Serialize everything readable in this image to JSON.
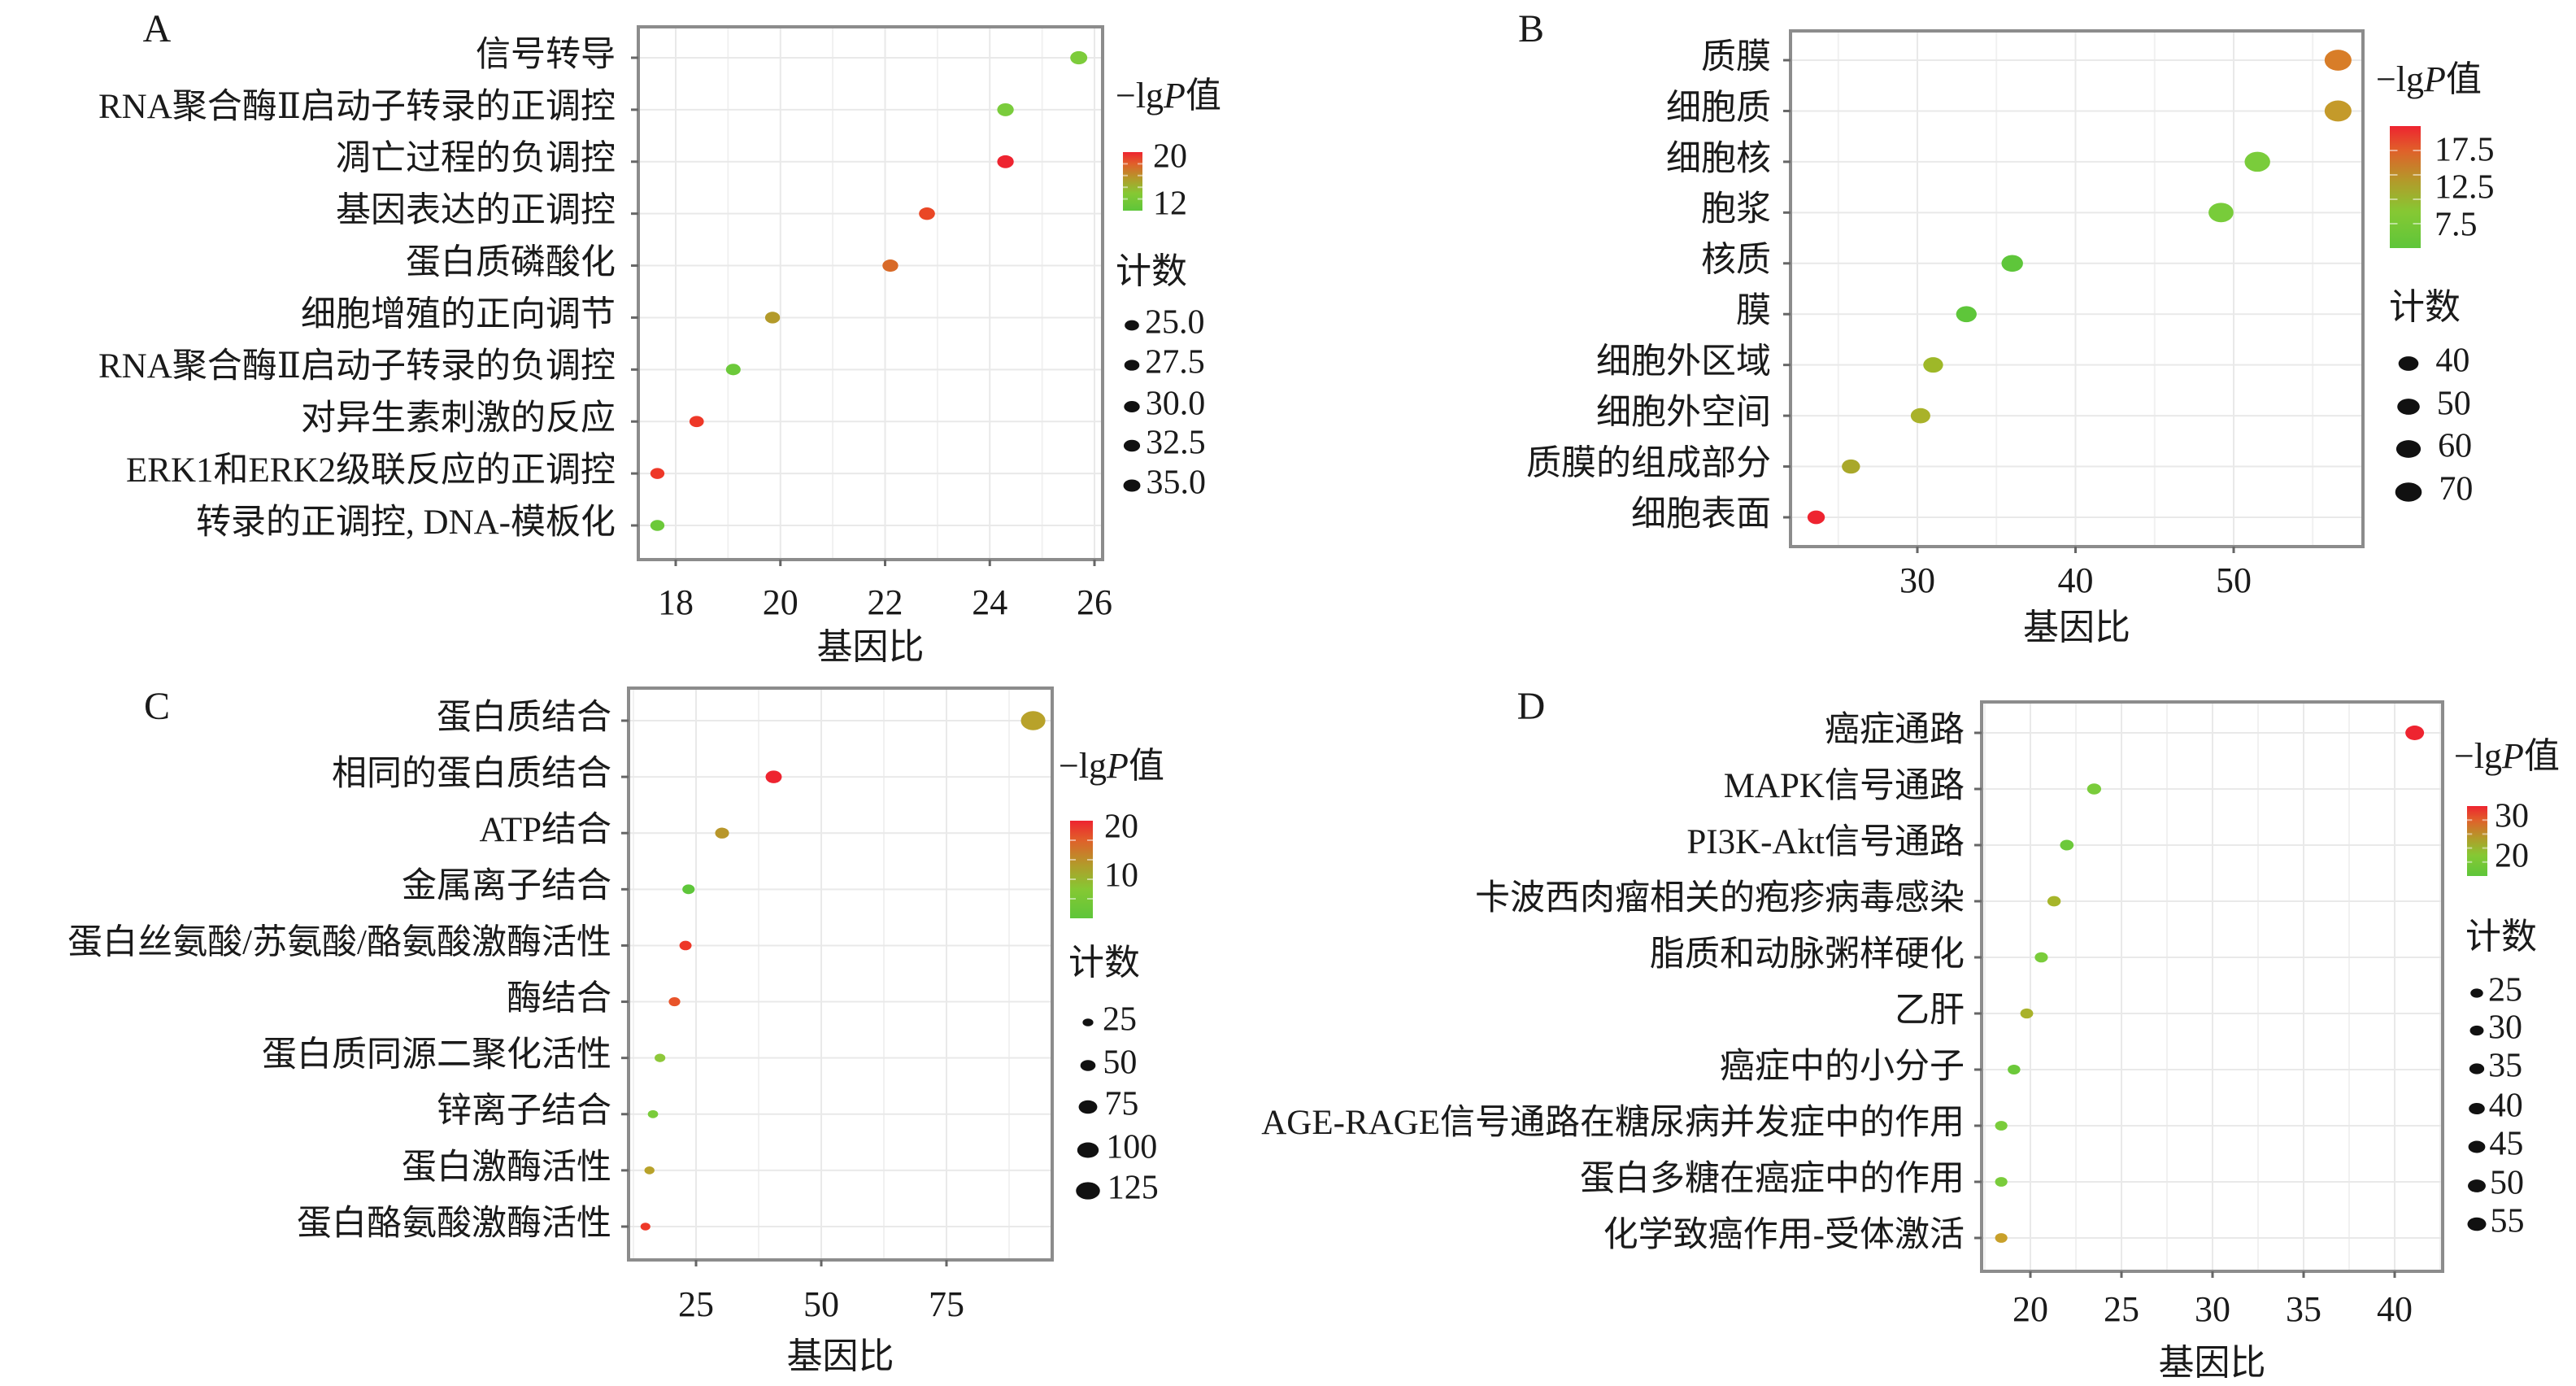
{
  "chart_data": [
    {
      "type": "scatter",
      "panel": "A",
      "xlabel": "基因比",
      "ylabel": "",
      "xlim": [
        17.3,
        26.2
      ],
      "xticks": [
        "18",
        "20",
        "22",
        "24",
        "26"
      ],
      "xtick_values": [
        18,
        20,
        22,
        24,
        26
      ],
      "minor_grid": [
        19,
        21,
        23,
        25
      ],
      "grid": true,
      "legend_position": "right",
      "color_legend": {
        "title_prefix": "−lg",
        "title_italic": "P",
        "title_suffix": "值",
        "labels": [
          "20",
          "12"
        ],
        "colors": [
          "#ee2430",
          "#b39a2a",
          "#5ec63a"
        ]
      },
      "size_legend": {
        "title": "计数",
        "labels": [
          "25.0",
          "27.5",
          "30.0",
          "32.5",
          "35.0"
        ],
        "values": [
          25,
          27.5,
          30,
          32.5,
          35
        ]
      },
      "categories": [
        "信号转导",
        "RNA聚合酶Ⅱ启动子转录的正调控",
        "凋亡过程的负调控",
        "基因表达的正调控",
        "蛋白质磷酸化",
        "细胞增殖的正向调节",
        "RNA聚合酶Ⅱ启动子转录的负调控",
        "对异生素刺激的反应",
        "ERK1和ERK2级联反应的正调控",
        "转录的正调控, DNA-模板化"
      ],
      "gene_ratio": [
        25.7,
        24.3,
        24.3,
        22.8,
        22.1,
        19.85,
        19.1,
        18.4,
        17.65,
        17.65
      ],
      "count": [
        35,
        33,
        33,
        31,
        30,
        27,
        26,
        25,
        24,
        24
      ],
      "neg_log_p": [
        11,
        12,
        21,
        19,
        17.5,
        15,
        12,
        20,
        20,
        11
      ],
      "point_colors": [
        "#7dcc3b",
        "#7acc3c",
        "#ee2430",
        "#ea4726",
        "#d86a28",
        "#b39a2a",
        "#6cc93a",
        "#ee3828",
        "#ee3828",
        "#6cc93a"
      ]
    },
    {
      "type": "scatter",
      "panel": "B",
      "xlabel": "基因比",
      "ylabel": "",
      "xlim": [
        22.2,
        58.5
      ],
      "xticks": [
        "30",
        "40",
        "50"
      ],
      "xtick_values": [
        30,
        40,
        50
      ],
      "minor_grid": [
        25,
        35,
        45,
        55
      ],
      "grid": true,
      "legend_position": "right",
      "color_legend": {
        "title_prefix": "−lg",
        "title_italic": "P",
        "title_suffix": "值",
        "labels": [
          "17.5",
          "12.5",
          "7.5"
        ],
        "colors": [
          "#ee2430",
          "#b39a2a",
          "#5ec63a"
        ]
      },
      "size_legend": {
        "title": "计数",
        "labels": [
          "40",
          "50",
          "60",
          "70"
        ],
        "values": [
          40,
          50,
          60,
          70
        ]
      },
      "categories": [
        "质膜",
        "细胞质",
        "细胞核",
        "胞浆",
        "核质",
        "膜",
        "细胞外区域",
        "细胞外空间",
        "质膜的组成部分",
        "细胞表面"
      ],
      "gene_ratio": [
        56.6,
        56.6,
        51.5,
        49.2,
        36.0,
        33.1,
        31.0,
        30.2,
        25.8,
        23.6
      ],
      "count": [
        72,
        72,
        65,
        62,
        46,
        42,
        39,
        38,
        33,
        30
      ],
      "neg_log_p": [
        14.5,
        13,
        6.5,
        7,
        5.5,
        5.5,
        9,
        10.5,
        11,
        20
      ],
      "point_colors": [
        "#d87d28",
        "#c49a2a",
        "#7acc3b",
        "#78cc3a",
        "#5ec63a",
        "#5ec63a",
        "#9eb828",
        "#a9b22a",
        "#a9a82a",
        "#ee2430"
      ]
    },
    {
      "type": "scatter",
      "panel": "C",
      "xlabel": "基因比",
      "ylabel": "",
      "xlim": [
        11.5,
        96.5
      ],
      "xticks": [
        "25",
        "50",
        "75"
      ],
      "xtick_values": [
        25,
        50,
        75
      ],
      "minor_grid": [
        12.5,
        37.5,
        62.5,
        87.5
      ],
      "grid": true,
      "legend_position": "right",
      "color_legend": {
        "title_prefix": "−lg",
        "title_italic": "P",
        "title_suffix": "值",
        "labels": [
          "20",
          "10"
        ],
        "colors": [
          "#ee2430",
          "#b39a2a",
          "#5ec63a"
        ]
      },
      "size_legend": {
        "title": "计数",
        "labels": [
          "25",
          "50",
          "75",
          "100",
          "125"
        ],
        "values": [
          25,
          50,
          75,
          100,
          125
        ]
      },
      "categories": [
        "蛋白质结合",
        "相同的蛋白质结合",
        "ATP结合",
        "金属离子结合",
        "蛋白丝氨酸/苏氨酸/酪氨酸激酶活性",
        "酶结合",
        "蛋白质同源二聚化活性",
        "锌离子结合",
        "蛋白激酶活性",
        "蛋白酪氨酸激酶活性"
      ],
      "gene_ratio": [
        92.3,
        40.5,
        30.2,
        23.5,
        22.9,
        20.7,
        17.8,
        16.4,
        15.7,
        14.9
      ],
      "count": [
        130,
        57,
        42,
        33,
        32,
        29,
        25,
        23,
        22,
        21
      ],
      "neg_log_p": [
        10,
        21,
        11,
        4,
        19,
        17,
        7,
        5,
        10,
        19
      ],
      "point_colors": [
        "#b8a22a",
        "#ee2430",
        "#b8962a",
        "#5ec63a",
        "#ee3828",
        "#e8542a",
        "#8ec83a",
        "#7acc3b",
        "#b8a22a",
        "#ee3828"
      ]
    },
    {
      "type": "scatter",
      "panel": "D",
      "xlabel": "基因比",
      "ylabel": "",
      "xlim": [
        17.4,
        42.7
      ],
      "xticks": [
        "20",
        "25",
        "30",
        "35",
        "40"
      ],
      "xtick_values": [
        20,
        25,
        30,
        35,
        40
      ],
      "minor_grid": [
        17.5,
        22.5,
        27.5,
        32.5,
        37.5,
        42.5
      ],
      "grid": true,
      "legend_position": "right",
      "color_legend": {
        "title_prefix": "−lg",
        "title_italic": "P",
        "title_suffix": "值",
        "labels": [
          "30",
          "20"
        ],
        "colors": [
          "#ee2430",
          "#b39a2a",
          "#5ec63a"
        ]
      },
      "size_legend": {
        "title": "计数",
        "labels": [
          "25",
          "30",
          "35",
          "40",
          "45",
          "50",
          "55"
        ],
        "values": [
          25,
          30,
          35,
          40,
          45,
          50,
          55
        ]
      },
      "categories": [
        "癌症通路",
        "MAPK信号通路",
        "PI3K-Akt信号通路",
        "卡波西肉瘤相关的疱疹病毒感染",
        "脂质和动脉粥样硬化",
        "乙肝",
        "癌症中的小分子",
        "AGE-RAGE信号通路在糖尿病并发症中的作用",
        "蛋白多糖在癌症中的作用",
        "化学致癌作用-受体激活"
      ],
      "gene_ratio": [
        41.1,
        23.5,
        22.0,
        21.3,
        20.6,
        19.8,
        19.1,
        18.4,
        18.4,
        18.4
      ],
      "count": [
        55,
        31,
        29,
        28,
        27,
        26,
        25,
        24,
        24,
        24
      ],
      "neg_log_p": [
        33,
        18,
        16,
        21,
        17,
        21,
        16,
        17,
        17,
        24
      ],
      "point_colors": [
        "#ee2430",
        "#7acc3b",
        "#6cc93a",
        "#a6b52a",
        "#7acc3b",
        "#a9b22a",
        "#6cc93a",
        "#7acc3b",
        "#7acc3b",
        "#c8a02a"
      ]
    }
  ]
}
